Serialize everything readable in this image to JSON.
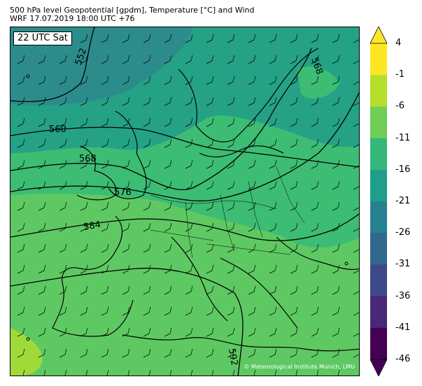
{
  "title_line1": "500 hPa level Geopotential [gpdm], Temperature [°C] and Wind",
  "title_line2": "WRF 17.07.2019 18:00 UTC +76",
  "time_label": "22 UTC Sat",
  "copyright": "© Meteorological Institute Munich, LMU",
  "contour_labels": [
    "552",
    "560",
    "568",
    "576",
    "584",
    "592",
    "568"
  ],
  "colorbar": {
    "ticks": [
      "4",
      "-1",
      "-6",
      "-11",
      "-16",
      "-21",
      "-26",
      "-31",
      "-36",
      "-41",
      "-46"
    ],
    "colors": [
      "#fde725",
      "#b5de2b",
      "#6ece58",
      "#35b779",
      "#1f9e89",
      "#26828e",
      "#31688e",
      "#3e4989",
      "#482878",
      "#440154"
    ]
  },
  "colors": {
    "land_green": "#5ec962",
    "mid_green": "#3dbc74",
    "teal": "#25a186",
    "deep_teal": "#2c8c8b",
    "yellow_green": "#a0da39"
  }
}
